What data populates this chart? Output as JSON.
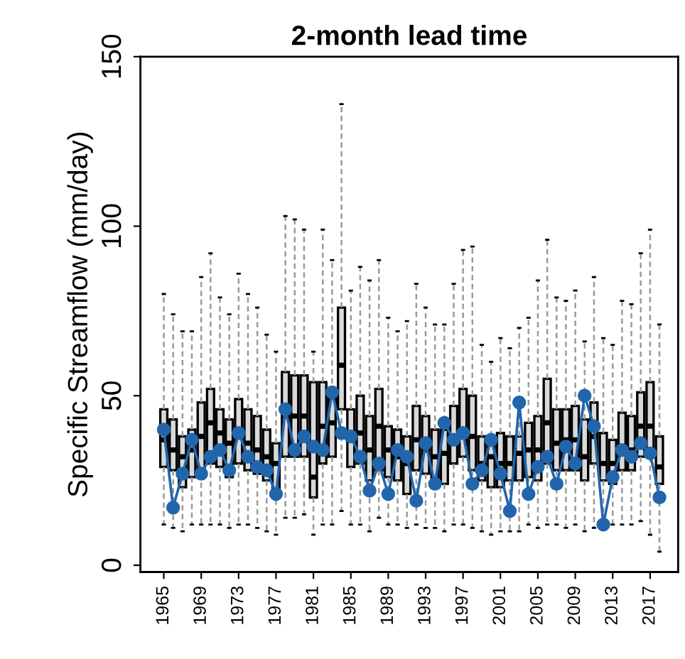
{
  "chart_data": {
    "type": "box",
    "title": "2-month lead time",
    "ylabel": "Specific Streamflow (mm/day)",
    "categories": [
      "1965",
      null,
      null,
      null,
      "1969",
      null,
      null,
      null,
      "1973",
      null,
      null,
      null,
      "1977",
      null,
      null,
      null,
      "1981",
      null,
      null,
      null,
      "1985",
      null,
      null,
      null,
      "1989",
      null,
      null,
      null,
      "1993",
      null,
      null,
      null,
      "1997",
      null,
      null,
      null,
      "2001",
      null,
      null,
      null,
      "2005",
      null,
      null,
      null,
      "2009",
      null,
      null,
      null,
      "2013",
      null,
      null,
      null,
      "2017",
      null
    ],
    "boxes": [
      {
        "low": 12,
        "q1": 29,
        "median": 37,
        "q3": 46,
        "high": 80
      },
      {
        "low": 11,
        "q1": 28,
        "median": 34,
        "q3": 43,
        "high": 74
      },
      {
        "low": 10,
        "q1": 23,
        "median": 32,
        "q3": 38,
        "high": 69
      },
      {
        "low": 12,
        "q1": 26,
        "median": 34,
        "q3": 40,
        "high": 69
      },
      {
        "low": 12,
        "q1": 27,
        "median": 38,
        "q3": 48,
        "high": 85
      },
      {
        "low": 12,
        "q1": 30,
        "median": 42,
        "q3": 52,
        "high": 92
      },
      {
        "low": 12,
        "q1": 29,
        "median": 39,
        "q3": 46,
        "high": 79
      },
      {
        "low": 11,
        "q1": 26,
        "median": 36,
        "q3": 43,
        "high": 74
      },
      {
        "low": 12,
        "q1": 30,
        "median": 38,
        "q3": 49,
        "high": 86
      },
      {
        "low": 12,
        "q1": 28,
        "median": 36,
        "q3": 46,
        "high": 80
      },
      {
        "low": 11,
        "q1": 27,
        "median": 34,
        "q3": 44,
        "high": 76
      },
      {
        "low": 10,
        "q1": 25,
        "median": 32,
        "q3": 40,
        "high": 68
      },
      {
        "low": 9,
        "q1": 22,
        "median": 30,
        "q3": 36,
        "high": 63
      },
      {
        "low": 14,
        "q1": 32,
        "median": 44,
        "q3": 57,
        "high": 103
      },
      {
        "low": 14,
        "q1": 32,
        "median": 44,
        "q3": 56,
        "high": 102
      },
      {
        "low": 15,
        "q1": 32,
        "median": 44,
        "q3": 56,
        "high": 99
      },
      {
        "low": 9,
        "q1": 20,
        "median": 26,
        "q3": 54,
        "high": 63
      },
      {
        "low": 12,
        "q1": 30,
        "median": 41,
        "q3": 54,
        "high": 99
      },
      {
        "low": 12,
        "q1": 32,
        "median": 42,
        "q3": 51,
        "high": 90
      },
      {
        "low": 16,
        "q1": 46,
        "median": 59,
        "q3": 76,
        "high": 136
      },
      {
        "low": 12,
        "q1": 29,
        "median": 38,
        "q3": 46,
        "high": 81
      },
      {
        "low": 12,
        "q1": 30,
        "median": 39,
        "q3": 50,
        "high": 88
      },
      {
        "low": 10,
        "q1": 25,
        "median": 34,
        "q3": 44,
        "high": 84
      },
      {
        "low": 14,
        "q1": 28,
        "median": 41,
        "q3": 52,
        "high": 90
      },
      {
        "low": 12,
        "q1": 26,
        "median": 34,
        "q3": 41,
        "high": 73
      },
      {
        "low": 12,
        "q1": 25,
        "median": 32,
        "q3": 40,
        "high": 69
      },
      {
        "low": 11,
        "q1": 21,
        "median": 30,
        "q3": 38,
        "high": 72
      },
      {
        "low": 12,
        "q1": 28,
        "median": 37,
        "q3": 47,
        "high": 83
      },
      {
        "low": 11,
        "q1": 27,
        "median": 34,
        "q3": 44,
        "high": 76
      },
      {
        "low": 11,
        "q1": 24,
        "median": 32,
        "q3": 40,
        "high": 71
      },
      {
        "low": 10,
        "q1": 24,
        "median": 33,
        "q3": 40,
        "high": 71
      },
      {
        "low": 12,
        "q1": 30,
        "median": 38,
        "q3": 47,
        "high": 83
      },
      {
        "low": 12,
        "q1": 32,
        "median": 39,
        "q3": 52,
        "high": 93
      },
      {
        "low": 11,
        "q1": 28,
        "median": 38,
        "q3": 50,
        "high": 94
      },
      {
        "low": 10,
        "q1": 25,
        "median": 30,
        "q3": 38,
        "high": 65
      },
      {
        "low": 9,
        "q1": 23,
        "median": 32,
        "q3": 38,
        "high": 60
      },
      {
        "low": 10,
        "q1": 23,
        "median": 30,
        "q3": 39,
        "high": 67
      },
      {
        "low": 10,
        "q1": 25,
        "median": 30,
        "q3": 38,
        "high": 64
      },
      {
        "low": 10,
        "q1": 25,
        "median": 33,
        "q3": 38,
        "high": 70
      },
      {
        "low": 12,
        "q1": 26,
        "median": 34,
        "q3": 42,
        "high": 73
      },
      {
        "low": 11,
        "q1": 25,
        "median": 34,
        "q3": 44,
        "high": 84
      },
      {
        "low": 12,
        "q1": 30,
        "median": 42,
        "q3": 55,
        "high": 96
      },
      {
        "low": 12,
        "q1": 28,
        "median": 36,
        "q3": 46,
        "high": 79
      },
      {
        "low": 11,
        "q1": 28,
        "median": 37,
        "q3": 46,
        "high": 78
      },
      {
        "low": 12,
        "q1": 28,
        "median": 37,
        "q3": 47,
        "high": 81
      },
      {
        "low": 10,
        "q1": 25,
        "median": 32,
        "q3": 43,
        "high": 66
      },
      {
        "low": 11,
        "q1": 30,
        "median": 38,
        "q3": 48,
        "high": 85
      },
      {
        "low": 12,
        "q1": 25,
        "median": 30,
        "q3": 39,
        "high": 67
      },
      {
        "low": 12,
        "q1": 24,
        "median": 30,
        "q3": 37,
        "high": 65
      },
      {
        "low": 12,
        "q1": 28,
        "median": 34,
        "q3": 45,
        "high": 78
      },
      {
        "low": 12,
        "q1": 28,
        "median": 34,
        "q3": 44,
        "high": 77
      },
      {
        "low": 13,
        "q1": 32,
        "median": 41,
        "q3": 51,
        "high": 92
      },
      {
        "low": 9,
        "q1": 32,
        "median": 41,
        "q3": 54,
        "high": 99
      },
      {
        "low": 4,
        "q1": 24,
        "median": 29,
        "q3": 38,
        "high": 71
      }
    ],
    "series": [
      {
        "type": "line",
        "color": "#2166ac",
        "marker": "circle",
        "values": [
          40,
          17,
          27,
          37,
          27,
          32,
          34,
          28,
          39,
          32,
          29,
          28,
          21,
          46,
          34,
          38,
          35,
          34,
          51,
          39,
          38,
          32,
          22,
          30,
          21,
          34,
          32,
          19,
          36,
          24,
          42,
          37,
          39,
          24,
          28,
          37,
          27,
          16,
          48,
          21,
          29,
          32,
          24,
          35,
          30,
          50,
          41,
          12,
          26,
          34,
          32,
          36,
          33,
          20
        ]
      }
    ],
    "ylim": [
      -2,
      150
    ],
    "yticks": [
      0,
      50,
      100,
      150
    ],
    "grid": false,
    "legend": false
  }
}
